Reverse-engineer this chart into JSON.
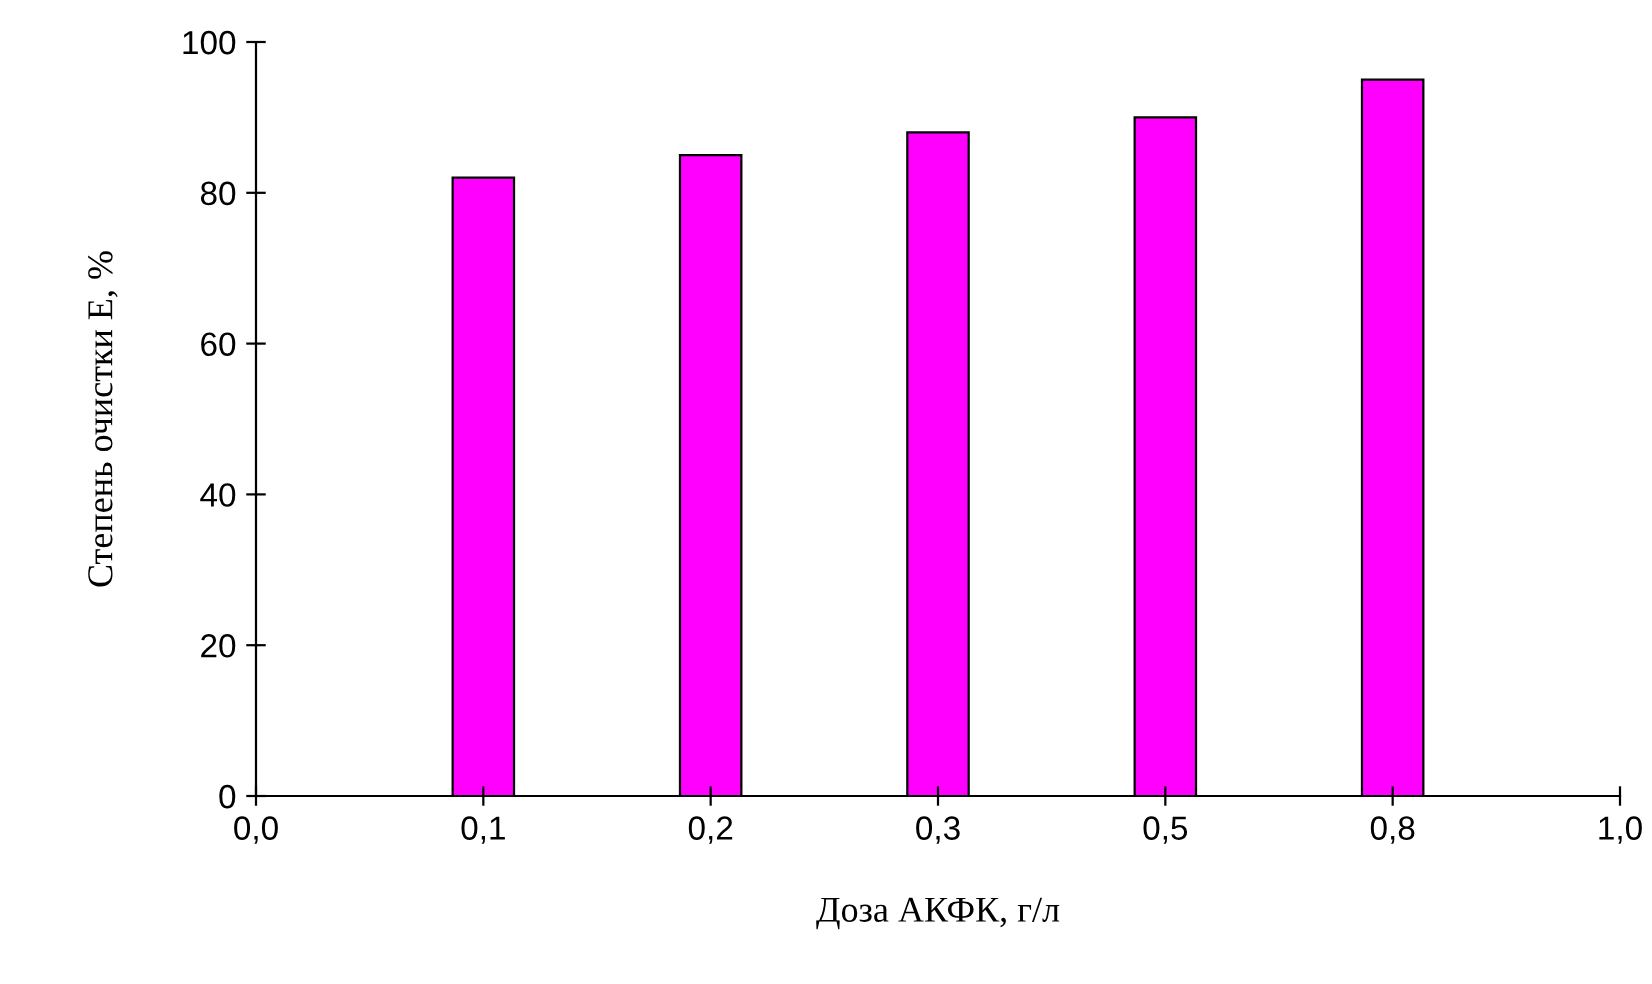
{
  "chart_data": {
    "type": "bar",
    "xlabel": "Доза АКФК, г/л",
    "ylabel": "Степень очистки Е, %",
    "categories": [
      "0,0",
      "0,1",
      "0,2",
      "0,3",
      "0,5",
      "0,8",
      "1,0"
    ],
    "values": [
      null,
      82,
      85,
      88,
      90,
      95,
      null
    ],
    "color": "#ff00ff",
    "ylim": [
      0,
      100
    ],
    "yticks": [
      0,
      20,
      40,
      60,
      80,
      100
    ],
    "grid": false,
    "legend": false
  }
}
